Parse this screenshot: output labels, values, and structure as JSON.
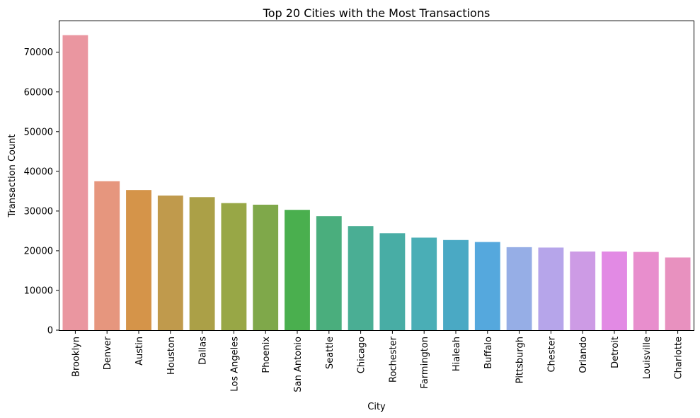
{
  "chart_data": {
    "type": "bar",
    "title": "Top 20 Cities with the Most Transactions",
    "xlabel": "City",
    "ylabel": "Transaction Count",
    "ylim": [
      0,
      77800
    ],
    "yticks": [
      0,
      10000,
      20000,
      30000,
      40000,
      50000,
      60000,
      70000
    ],
    "grid": false,
    "categories": [
      "Brooklyn",
      "Denver",
      "Austin",
      "Houston",
      "Dallas",
      "Los Angeles",
      "Phoenix",
      "San Antonio",
      "Seattle",
      "Chicago",
      "Rochester",
      "Farmington",
      "Hialeah",
      "Buffalo",
      "Pittsburgh",
      "Chester",
      "Orlando",
      "Detroit",
      "Louisville",
      "Charlotte"
    ],
    "values": [
      74300,
      37500,
      35300,
      33900,
      33500,
      32000,
      31600,
      30300,
      28700,
      26200,
      24400,
      23300,
      22700,
      22200,
      20900,
      20800,
      19800,
      19800,
      19700,
      18300
    ],
    "colors": [
      "#ea96a0",
      "#e6967e",
      "#d59449",
      "#c09a4c",
      "#aba047",
      "#98a746",
      "#7fa84a",
      "#4aaf4e",
      "#4aae7d",
      "#4aae94",
      "#48ada5",
      "#4aaeb6",
      "#4aa9c4",
      "#55a8dd",
      "#96aee6",
      "#b6a5ea",
      "#cd9be5",
      "#e28ae4",
      "#e88ecd",
      "#e891bf"
    ]
  }
}
